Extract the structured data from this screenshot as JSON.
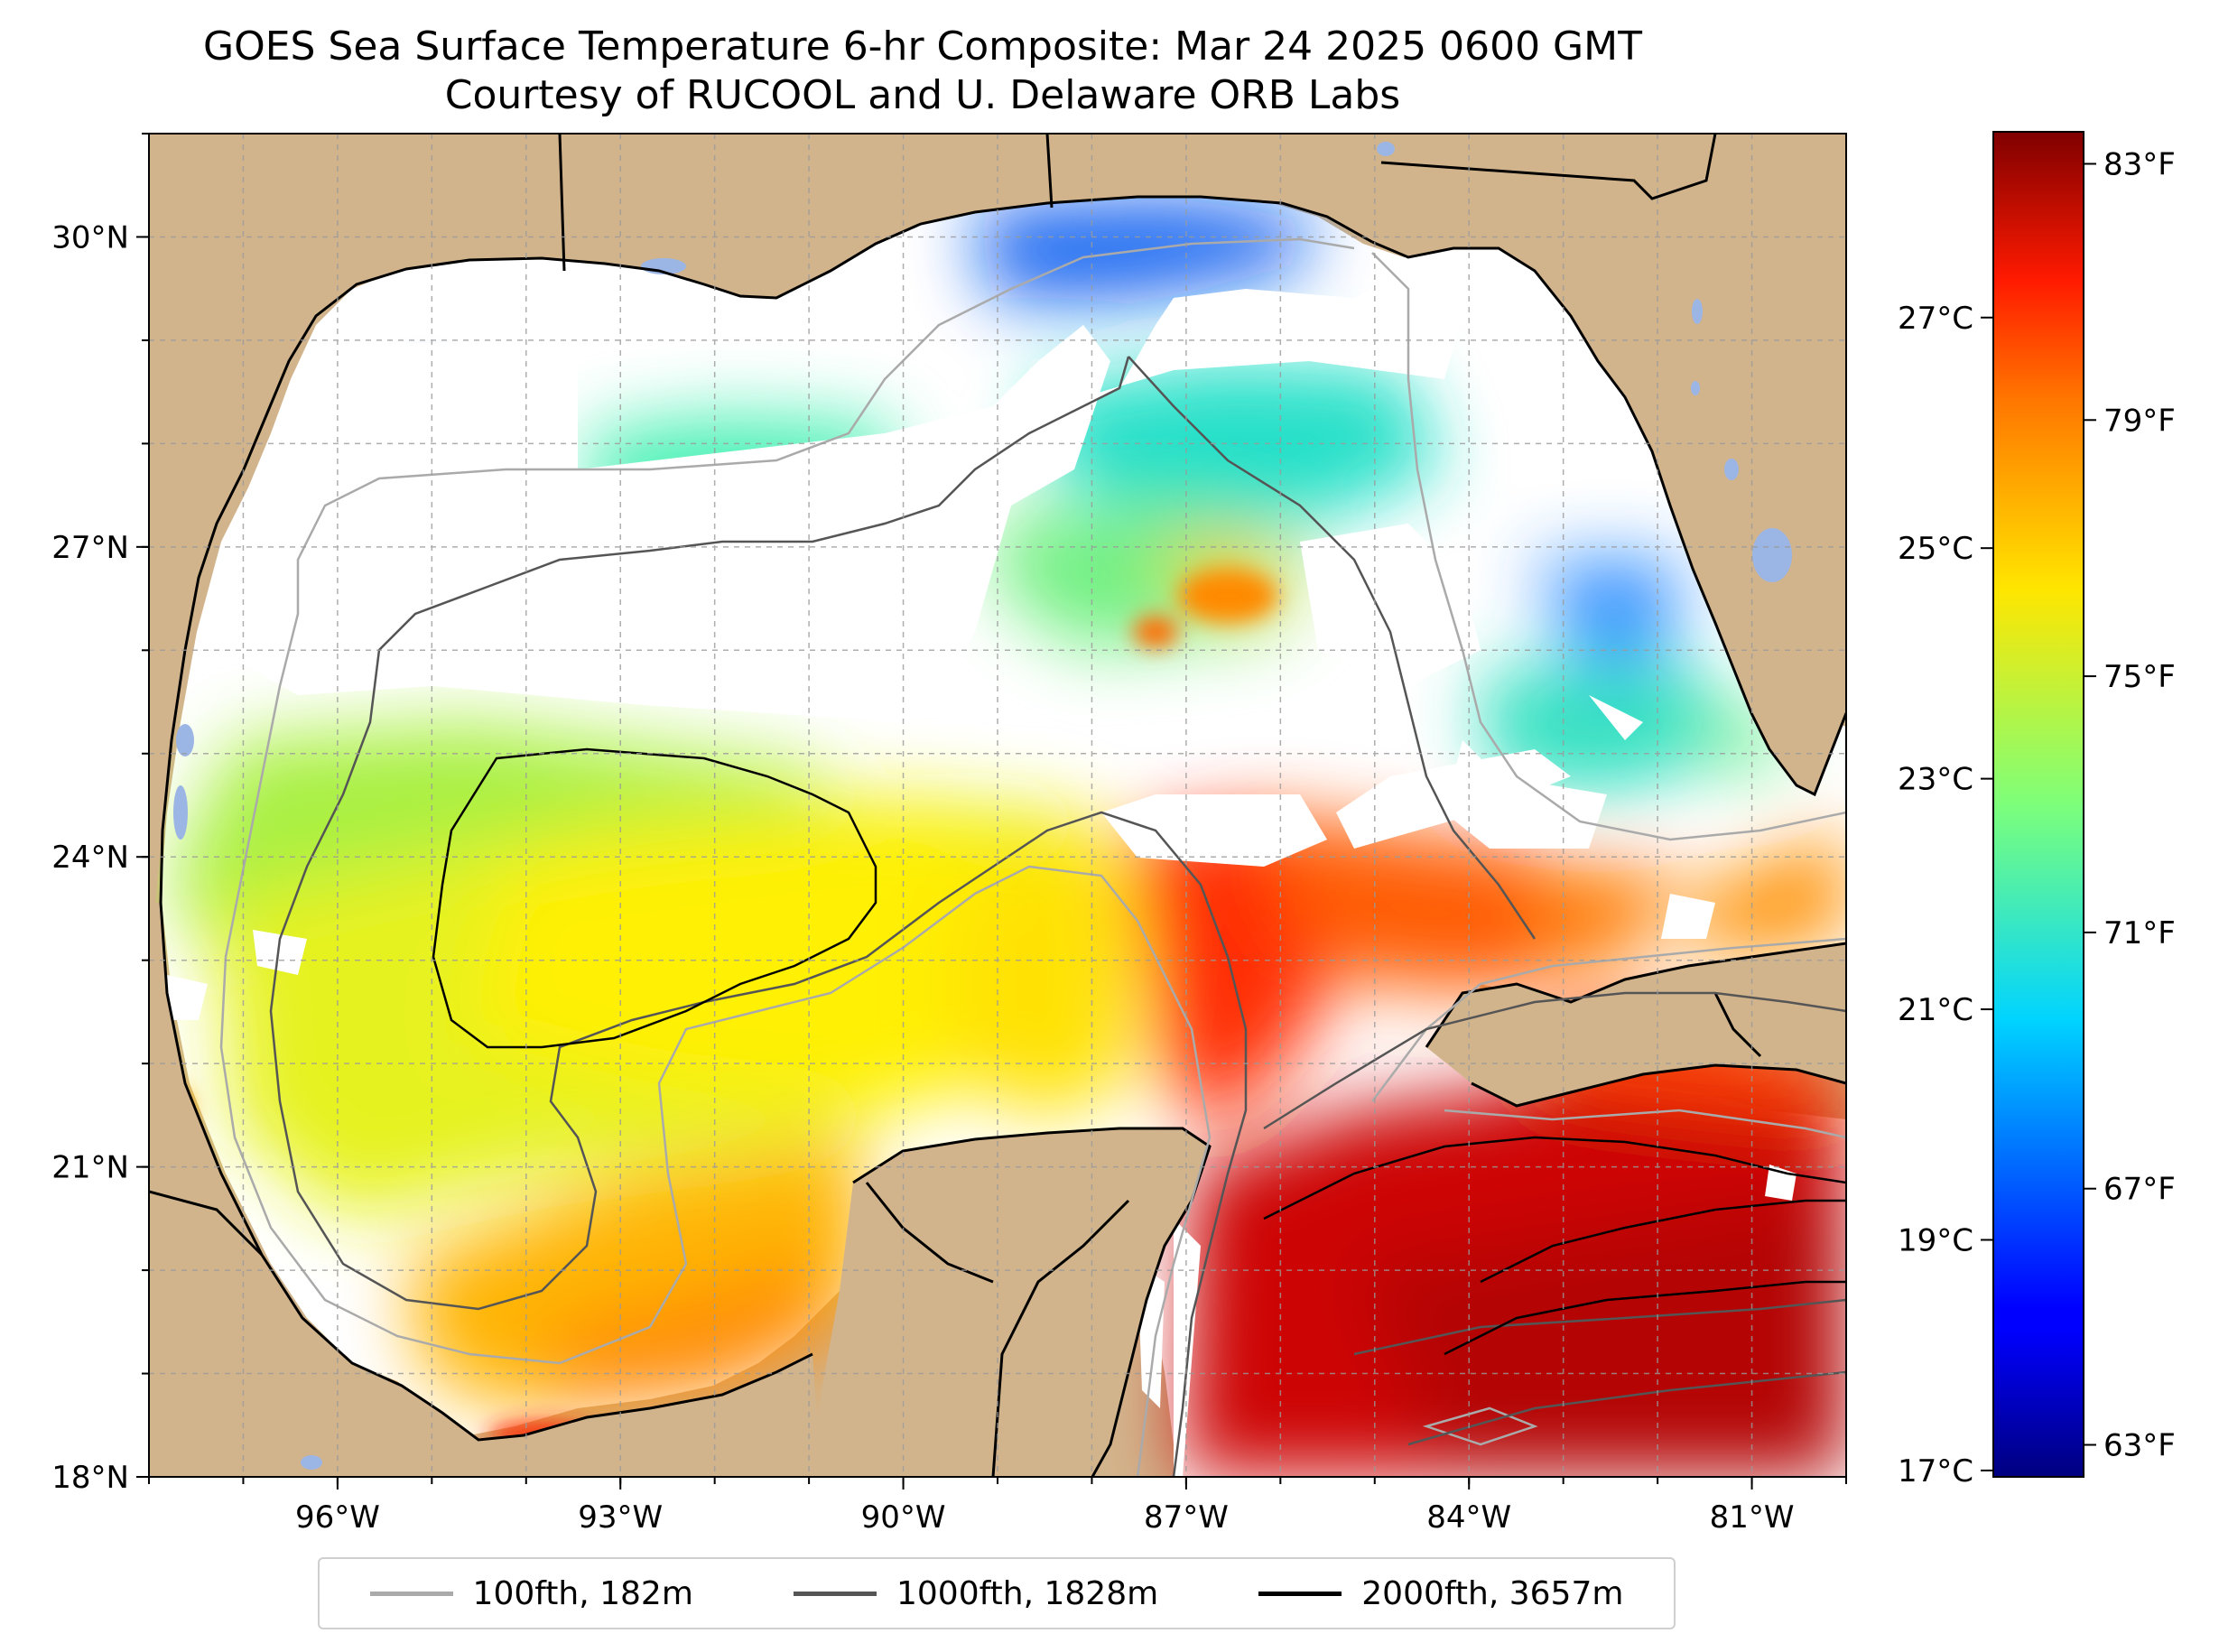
{
  "title": {
    "line1": "GOES Sea Surface Temperature 6-hr Composite: Mar 24 2025 0600 GMT",
    "line2": "Courtesy of RUCOOL and U. Delaware ORB Labs"
  },
  "map": {
    "lon_range": [
      -98,
      -80
    ],
    "lat_range": [
      18,
      31
    ],
    "lon_ticks": [
      {
        "value": -96,
        "label": "96°W"
      },
      {
        "value": -93,
        "label": "93°W"
      },
      {
        "value": -90,
        "label": "90°W"
      },
      {
        "value": -87,
        "label": "87°W"
      },
      {
        "value": -84,
        "label": "84°W"
      },
      {
        "value": -81,
        "label": "81°W"
      }
    ],
    "lat_ticks": [
      {
        "value": 18,
        "label": "18°N"
      },
      {
        "value": 21,
        "label": "21°N"
      },
      {
        "value": 24,
        "label": "24°N"
      },
      {
        "value": 27,
        "label": "27°N"
      },
      {
        "value": 30,
        "label": "30°N"
      }
    ],
    "land_color": "#d2b48c",
    "cloud_color": "#ffffff",
    "grid": true
  },
  "colorbar": {
    "colormap": "jet",
    "range_f": [
      62.5,
      83.5
    ],
    "f_ticks": [
      {
        "value": 63,
        "label": "63°F"
      },
      {
        "value": 67,
        "label": "67°F"
      },
      {
        "value": 71,
        "label": "71°F"
      },
      {
        "value": 75,
        "label": "75°F"
      },
      {
        "value": 79,
        "label": "79°F"
      },
      {
        "value": 83,
        "label": "83°F"
      }
    ],
    "c_ticks": [
      {
        "value": 17,
        "label": "17°C"
      },
      {
        "value": 19,
        "label": "19°C"
      },
      {
        "value": 21,
        "label": "21°C"
      },
      {
        "value": 23,
        "label": "23°C"
      },
      {
        "value": 25,
        "label": "25°C"
      },
      {
        "value": 27,
        "label": "27°C"
      }
    ]
  },
  "legend": [
    {
      "label": "100fth, 182m",
      "color": "#aaaaaa"
    },
    {
      "label": "1000fth, 1828m",
      "color": "#555555"
    },
    {
      "label": "2000fth, 3657m",
      "color": "#000000"
    }
  ]
}
